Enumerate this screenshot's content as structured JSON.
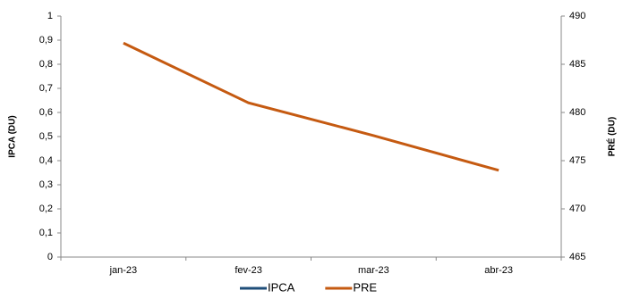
{
  "chart_data": {
    "type": "line",
    "categories": [
      "jan-23",
      "fev-23",
      "mar-23",
      "abr-23"
    ],
    "series": [
      {
        "name": "IPCA",
        "color": "#1f4e79",
        "values": [
          null,
          null,
          null,
          null
        ]
      },
      {
        "name": "PRE",
        "color": "#c55a11",
        "axis": "y2",
        "values": [
          487.2,
          481.0,
          477.6,
          474.0
        ]
      }
    ],
    "ylabel": "IPCA (DU)",
    "y2label": "PRÉ (DU)",
    "ylim": [
      0,
      1
    ],
    "yticks": [
      0,
      {
        "value": 0.1,
        "label": "0,1"
      },
      {
        "value": 0.2,
        "label": "0,2"
      },
      {
        "value": 0.3,
        "label": "0,3"
      },
      {
        "value": 0.4,
        "label": "0,4"
      },
      {
        "value": 0.5,
        "label": "0,5"
      },
      {
        "value": 0.6,
        "label": "0,6"
      },
      {
        "value": 0.7,
        "label": "0,7"
      },
      {
        "value": 0.8,
        "label": "0,8"
      },
      {
        "value": 0.9,
        "label": "0,9"
      },
      1
    ],
    "y2lim": [
      465,
      490
    ],
    "y2ticks": [
      465,
      470,
      475,
      480,
      485,
      490
    ],
    "legend": "bottom"
  }
}
